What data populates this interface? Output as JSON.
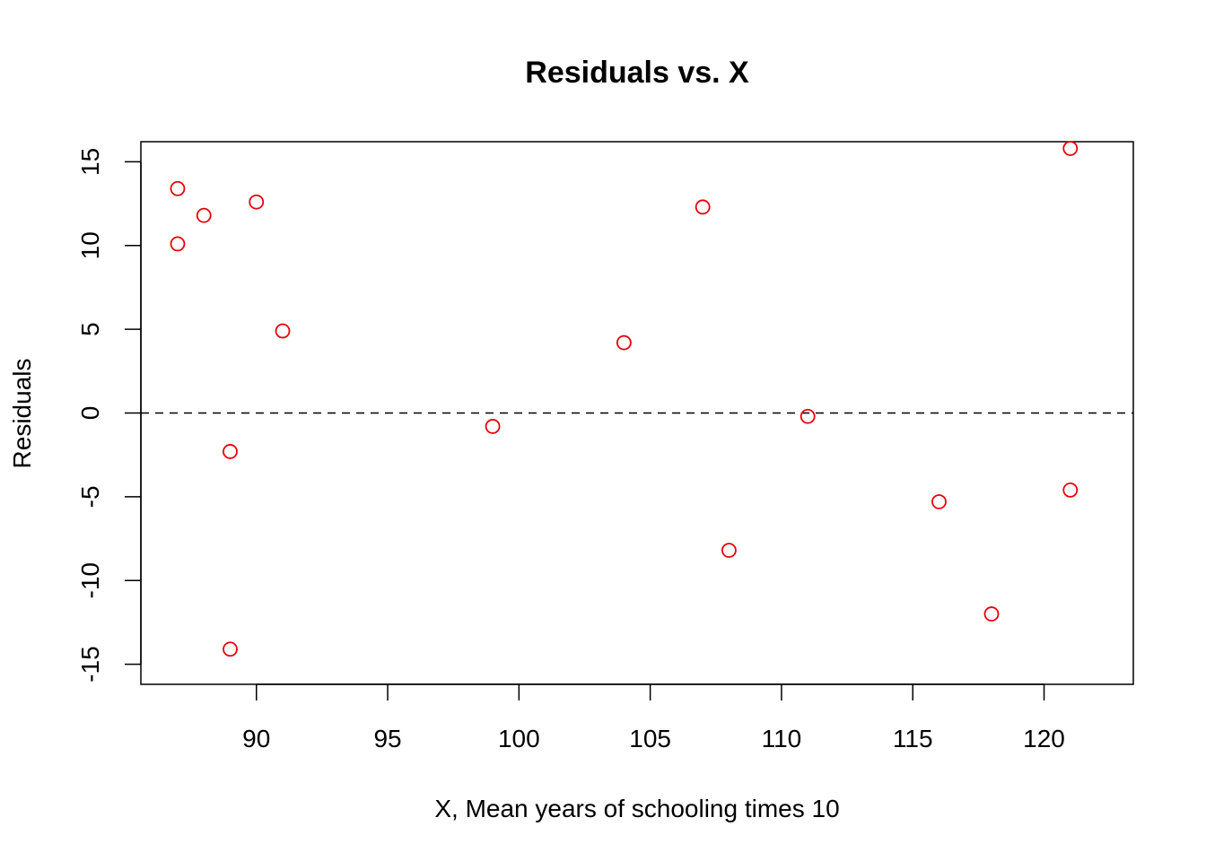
{
  "chart_data": {
    "type": "scatter",
    "title": "Residuals vs. X",
    "xlabel": "X, Mean years of schooling times 10",
    "ylabel": "Residuals",
    "xlim": [
      85.6,
      123.4
    ],
    "ylim": [
      -16.2,
      16.2
    ],
    "xticks": [
      90,
      95,
      100,
      105,
      110,
      115,
      120
    ],
    "yticks": [
      -15,
      -10,
      -5,
      0,
      5,
      10,
      15
    ],
    "grid": false,
    "legend": "none",
    "reference_line": {
      "y": 0,
      "style": "dashed"
    },
    "point_color": "#e8000b",
    "points": [
      {
        "x": 87,
        "y": 13.4
      },
      {
        "x": 87,
        "y": 10.1
      },
      {
        "x": 88,
        "y": 11.8
      },
      {
        "x": 89,
        "y": -2.3
      },
      {
        "x": 89,
        "y": -14.1
      },
      {
        "x": 90,
        "y": 12.6
      },
      {
        "x": 91,
        "y": 4.9
      },
      {
        "x": 99,
        "y": -0.8
      },
      {
        "x": 104,
        "y": 4.2
      },
      {
        "x": 107,
        "y": 12.3
      },
      {
        "x": 108,
        "y": -8.2
      },
      {
        "x": 111,
        "y": -0.2
      },
      {
        "x": 116,
        "y": -5.3
      },
      {
        "x": 118,
        "y": -12.0
      },
      {
        "x": 121,
        "y": 15.8
      },
      {
        "x": 121,
        "y": -4.6
      }
    ]
  }
}
